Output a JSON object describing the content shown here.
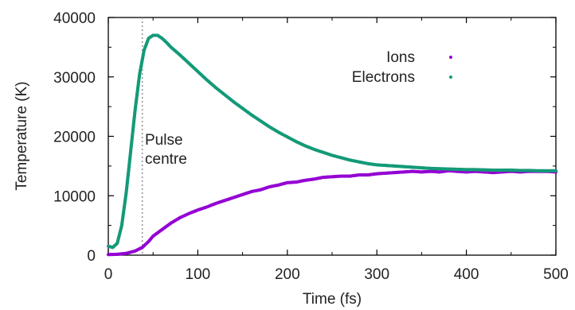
{
  "chart_data": {
    "type": "scatter",
    "xlabel": "Time (fs)",
    "ylabel": "Temperature (K)",
    "xlim": [
      0,
      500
    ],
    "ylim": [
      0,
      40000
    ],
    "xticks": [
      0,
      100,
      200,
      300,
      400,
      500
    ],
    "yticks": [
      0,
      10000,
      20000,
      30000,
      40000
    ],
    "grid": false,
    "legend_position": "top-right",
    "annotations": [
      {
        "text_lines": [
          "Pulse",
          "centre"
        ],
        "x": 38,
        "style": "vertical dotted line"
      }
    ],
    "series": [
      {
        "name": "Ions",
        "color": "#9400d3",
        "x": [
          0,
          10,
          20,
          30,
          38,
          45,
          50,
          60,
          70,
          80,
          90,
          100,
          110,
          120,
          130,
          140,
          150,
          160,
          170,
          180,
          190,
          200,
          210,
          220,
          230,
          240,
          250,
          260,
          270,
          280,
          290,
          300,
          310,
          320,
          330,
          340,
          350,
          360,
          370,
          380,
          390,
          400,
          410,
          420,
          430,
          440,
          450,
          460,
          470,
          480,
          490,
          500
        ],
        "y": [
          100,
          150,
          300,
          700,
          1300,
          2300,
          3200,
          4300,
          5400,
          6300,
          7000,
          7600,
          8100,
          8700,
          9200,
          9700,
          10200,
          10700,
          11000,
          11500,
          11800,
          12200,
          12300,
          12600,
          12800,
          13100,
          13200,
          13300,
          13300,
          13500,
          13500,
          13700,
          13800,
          13900,
          14000,
          14100,
          14000,
          14100,
          14000,
          14200,
          14100,
          14000,
          14100,
          14000,
          13900,
          14000,
          14100,
          14000,
          14100,
          14100,
          14100,
          14000
        ]
      },
      {
        "name": "Electrons",
        "color": "#149a78",
        "x": [
          0,
          5,
          10,
          15,
          20,
          25,
          30,
          35,
          40,
          45,
          50,
          55,
          60,
          65,
          70,
          80,
          90,
          100,
          110,
          120,
          130,
          140,
          150,
          160,
          170,
          180,
          190,
          200,
          210,
          220,
          230,
          240,
          250,
          260,
          270,
          280,
          290,
          300,
          310,
          320,
          330,
          340,
          350,
          360,
          370,
          380,
          390,
          400,
          410,
          420,
          430,
          440,
          450,
          460,
          470,
          480,
          490,
          500
        ],
        "y": [
          1500,
          1300,
          2000,
          5000,
          10500,
          17500,
          24500,
          30500,
          34500,
          36500,
          37000,
          37000,
          36500,
          35800,
          35000,
          33700,
          32300,
          30900,
          29500,
          28200,
          27000,
          25800,
          24700,
          23600,
          22600,
          21600,
          20700,
          19900,
          19100,
          18400,
          17800,
          17300,
          16800,
          16400,
          16000,
          15700,
          15400,
          15200,
          15100,
          15000,
          14900,
          14800,
          14700,
          14600,
          14550,
          14500,
          14450,
          14400,
          14400,
          14350,
          14300,
          14300,
          14300,
          14250,
          14250,
          14200,
          14200,
          14200
        ]
      }
    ]
  }
}
